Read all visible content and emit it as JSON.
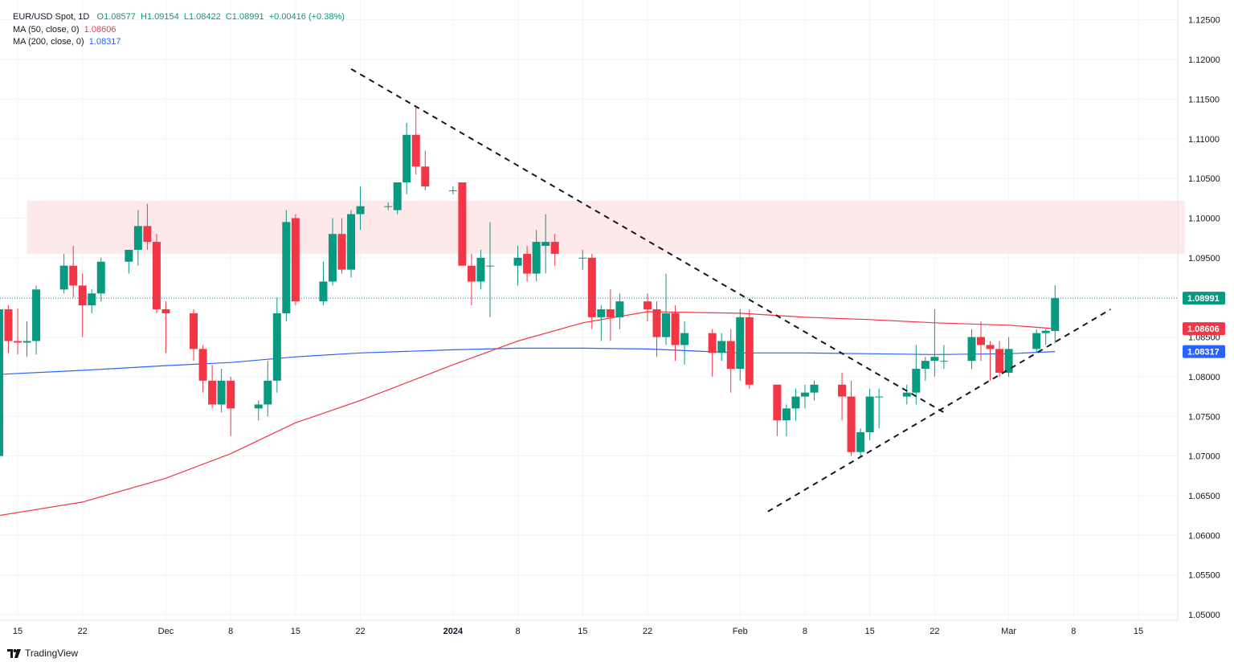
{
  "legend": {
    "symbol": "EUR/USD Spot, 1D",
    "open": "O1.08577",
    "high": "H1.09154",
    "low": "L1.08422",
    "close": "C1.08991",
    "change": "+0.00416 (+0.38%)",
    "ma50_label": "MA (50, close, 0)",
    "ma50_value": "1.08606",
    "ma200_label": "MA (200, close, 0)",
    "ma200_value": "1.08317"
  },
  "brand": {
    "name": "TradingView",
    "icon": "tradingview-logo-icon"
  },
  "colors": {
    "up": "#089981",
    "down": "#f23645",
    "ma50": "#f23645",
    "ma200": "#2962ff",
    "zone": "#fde8ea",
    "grid": "#f0f3fa"
  },
  "chart_data": {
    "type": "candlestick",
    "ylim": [
      1.0493,
      1.1275
    ],
    "y_ticks": [
      "1.05000",
      "1.05500",
      "1.06000",
      "1.06500",
      "1.07000",
      "1.07500",
      "1.08000",
      "1.08500",
      "1.09000",
      "1.09500",
      "1.10000",
      "1.10500",
      "1.11000",
      "1.11500",
      "1.12000",
      "1.12500"
    ],
    "x_ticks": [
      {
        "label": "15",
        "date": "2023-11-15"
      },
      {
        "label": "22",
        "date": "2023-11-22"
      },
      {
        "label": "Dec",
        "date": "2023-12-01"
      },
      {
        "label": "8",
        "date": "2023-12-08"
      },
      {
        "label": "15",
        "date": "2023-12-15"
      },
      {
        "label": "22",
        "date": "2023-12-22"
      },
      {
        "label": "2024",
        "date": "2024-01-01",
        "bold": true
      },
      {
        "label": "8",
        "date": "2024-01-08"
      },
      {
        "label": "15",
        "date": "2024-01-15"
      },
      {
        "label": "22",
        "date": "2024-01-22"
      },
      {
        "label": "Feb",
        "date": "2024-02-01"
      },
      {
        "label": "8",
        "date": "2024-02-08"
      },
      {
        "label": "15",
        "date": "2024-02-15"
      },
      {
        "label": "22",
        "date": "2024-02-22"
      },
      {
        "label": "Mar",
        "date": "2024-03-01"
      },
      {
        "label": "8",
        "date": "2024-03-08"
      },
      {
        "label": "15",
        "date": "2024-03-15"
      }
    ],
    "candles": [
      [
        "2023-11-13",
        1.07,
        1.0886,
        1.068,
        1.0885
      ],
      [
        "2023-11-14",
        1.0885,
        1.089,
        1.083,
        1.0845
      ],
      [
        "2023-11-15",
        1.0845,
        1.0886,
        1.0828,
        1.0843
      ],
      [
        "2023-11-16",
        1.0843,
        1.087,
        1.0825,
        1.0845
      ],
      [
        "2023-11-17",
        1.0845,
        1.0915,
        1.0828,
        1.091
      ],
      [
        "2023-11-20",
        1.091,
        1.0955,
        1.0905,
        1.094
      ],
      [
        "2023-11-21",
        1.094,
        1.0965,
        1.09,
        1.0915
      ],
      [
        "2023-11-22",
        1.0915,
        1.093,
        1.085,
        1.089
      ],
      [
        "2023-11-23",
        1.089,
        1.091,
        1.088,
        1.0905
      ],
      [
        "2023-11-24",
        1.0905,
        1.095,
        1.0895,
        1.0945
      ],
      [
        "2023-11-27",
        1.0945,
        1.096,
        1.093,
        1.096
      ],
      [
        "2023-11-28",
        1.096,
        1.101,
        1.094,
        1.099
      ],
      [
        "2023-11-29",
        1.099,
        1.1018,
        1.096,
        1.097
      ],
      [
        "2023-11-30",
        1.097,
        1.098,
        1.088,
        1.0885
      ],
      [
        "2023-12-01",
        1.0885,
        1.0895,
        1.083,
        1.088
      ],
      [
        "2023-12-04",
        1.088,
        1.0885,
        1.082,
        1.0835
      ],
      [
        "2023-12-05",
        1.0835,
        1.084,
        1.078,
        1.0795
      ],
      [
        "2023-12-06",
        1.0795,
        1.0815,
        1.076,
        1.0765
      ],
      [
        "2023-12-07",
        1.0765,
        1.081,
        1.0755,
        1.0795
      ],
      [
        "2023-12-08",
        1.0795,
        1.08,
        1.0725,
        1.076
      ],
      [
        "2023-12-11",
        1.076,
        1.077,
        1.0745,
        1.0765
      ],
      [
        "2023-12-12",
        1.0765,
        1.082,
        1.075,
        1.0795
      ],
      [
        "2023-12-13",
        1.0795,
        1.09,
        1.078,
        1.088
      ],
      [
        "2023-12-14",
        1.088,
        1.101,
        1.087,
        1.0995
      ],
      [
        "2023-12-15",
        1.1,
        1.1005,
        1.089,
        1.0895
      ],
      [
        "2023-12-18",
        1.0895,
        1.0945,
        1.089,
        1.092
      ],
      [
        "2023-12-19",
        1.092,
        1.1,
        1.0915,
        1.098
      ],
      [
        "2023-12-20",
        1.098,
        1.1,
        1.093,
        1.0935
      ],
      [
        "2023-12-21",
        1.0935,
        1.101,
        1.0925,
        1.1005
      ],
      [
        "2023-12-22",
        1.1005,
        1.104,
        1.0985,
        1.1015
      ],
      [
        "2023-12-25",
        1.1015,
        1.102,
        1.101,
        1.1015
      ],
      [
        "2023-12-26",
        1.101,
        1.1045,
        1.1005,
        1.1045
      ],
      [
        "2023-12-27",
        1.1045,
        1.112,
        1.103,
        1.1105
      ],
      [
        "2023-12-28",
        1.1105,
        1.114,
        1.1055,
        1.1065
      ],
      [
        "2023-12-29",
        1.1065,
        1.1085,
        1.1035,
        1.104
      ],
      [
        "2024-01-01",
        1.1035,
        1.104,
        1.103,
        1.1035
      ],
      [
        "2024-01-02",
        1.1045,
        1.1045,
        1.094,
        1.094
      ],
      [
        "2024-01-03",
        1.094,
        1.0955,
        1.089,
        1.092
      ],
      [
        "2024-01-04",
        1.092,
        1.096,
        1.091,
        1.095
      ],
      [
        "2024-01-05",
        1.094,
        1.0995,
        1.0875,
        1.094
      ],
      [
        "2024-01-08",
        1.094,
        1.0965,
        1.0915,
        1.095
      ],
      [
        "2024-01-09",
        1.0955,
        1.0965,
        1.092,
        1.093
      ],
      [
        "2024-01-10",
        1.093,
        1.0985,
        1.092,
        1.097
      ],
      [
        "2024-01-11",
        1.0965,
        1.1005,
        1.093,
        1.097
      ],
      [
        "2024-01-12",
        1.097,
        1.098,
        1.094,
        1.0955
      ],
      [
        "2024-01-15",
        1.095,
        1.096,
        1.0935,
        1.095
      ],
      [
        "2024-01-16",
        1.095,
        1.0955,
        1.086,
        1.0875
      ],
      [
        "2024-01-17",
        1.0875,
        1.089,
        1.0845,
        1.0885
      ],
      [
        "2024-01-18",
        1.0885,
        1.091,
        1.0845,
        1.0875
      ],
      [
        "2024-01-19",
        1.0875,
        1.0905,
        1.086,
        1.0895
      ],
      [
        "2024-01-22",
        1.0895,
        1.0905,
        1.087,
        1.0885
      ],
      [
        "2024-01-23",
        1.0885,
        1.0895,
        1.0825,
        1.085
      ],
      [
        "2024-01-24",
        1.085,
        1.093,
        1.084,
        1.088
      ],
      [
        "2024-01-25",
        1.088,
        1.089,
        1.082,
        1.084
      ],
      [
        "2024-01-26",
        1.084,
        1.087,
        1.0815,
        1.0855
      ],
      [
        "2024-01-29",
        1.0855,
        1.086,
        1.08,
        1.083
      ],
      [
        "2024-01-30",
        1.083,
        1.0855,
        1.082,
        1.0845
      ],
      [
        "2024-01-31",
        1.0845,
        1.086,
        1.078,
        1.081
      ],
      [
        "2024-02-01",
        1.081,
        1.0885,
        1.0795,
        1.0875
      ],
      [
        "2024-02-02",
        1.0875,
        1.0885,
        1.0785,
        1.079
      ],
      [
        "2024-02-05",
        1.079,
        1.079,
        1.0725,
        1.0745
      ],
      [
        "2024-02-06",
        1.0745,
        1.0765,
        1.0725,
        1.076
      ],
      [
        "2024-02-07",
        1.076,
        1.0785,
        1.0745,
        1.0775
      ],
      [
        "2024-02-08",
        1.0775,
        1.079,
        1.076,
        1.078
      ],
      [
        "2024-02-09",
        1.078,
        1.0795,
        1.077,
        1.079
      ],
      [
        "2024-02-12",
        1.079,
        1.0805,
        1.0745,
        1.0775
      ],
      [
        "2024-02-13",
        1.0775,
        1.0795,
        1.07,
        1.0705
      ],
      [
        "2024-02-14",
        1.0705,
        1.0735,
        1.07,
        1.073
      ],
      [
        "2024-02-15",
        1.073,
        1.0785,
        1.072,
        1.0775
      ],
      [
        "2024-02-16",
        1.0775,
        1.0785,
        1.0735,
        1.0775
      ],
      [
        "2024-02-19",
        1.0775,
        1.079,
        1.0765,
        1.078
      ],
      [
        "2024-02-20",
        1.078,
        1.084,
        1.0765,
        1.081
      ],
      [
        "2024-02-21",
        1.081,
        1.0825,
        1.0795,
        1.082
      ],
      [
        "2024-02-22",
        1.082,
        1.0885,
        1.08,
        1.0825
      ],
      [
        "2024-02-23",
        1.082,
        1.084,
        1.081,
        1.082
      ],
      [
        "2024-02-26",
        1.082,
        1.086,
        1.081,
        1.085
      ],
      [
        "2024-02-27",
        1.085,
        1.087,
        1.082,
        1.084
      ],
      [
        "2024-02-28",
        1.084,
        1.0845,
        1.0795,
        1.0835
      ],
      [
        "2024-02-29",
        1.0835,
        1.0845,
        1.08,
        1.0805
      ],
      [
        "2024-03-01",
        1.0805,
        1.085,
        1.08,
        1.0835
      ],
      [
        "2024-03-04",
        1.0835,
        1.086,
        1.083,
        1.0855
      ],
      [
        "2024-03-05",
        1.0855,
        1.086,
        1.084,
        1.0858
      ],
      [
        "2024-03-06",
        1.08577,
        1.09154,
        1.08422,
        1.08991
      ]
    ],
    "ma50": [
      [
        "2023-11-13",
        1.0625
      ],
      [
        "2023-11-22",
        1.0642
      ],
      [
        "2023-12-01",
        1.0672
      ],
      [
        "2023-12-08",
        1.0703
      ],
      [
        "2023-12-15",
        1.0742
      ],
      [
        "2023-12-22",
        1.077
      ],
      [
        "2024-01-01",
        1.0815
      ],
      [
        "2024-01-08",
        1.0845
      ],
      [
        "2024-01-15",
        1.0868
      ],
      [
        "2024-01-22",
        1.0882
      ],
      [
        "2024-02-01",
        1.088
      ],
      [
        "2024-02-08",
        1.0875
      ],
      [
        "2024-02-15",
        1.0872
      ],
      [
        "2024-02-22",
        1.0868
      ],
      [
        "2024-03-01",
        1.0865
      ],
      [
        "2024-03-06",
        1.08606
      ]
    ],
    "ma200": [
      [
        "2023-11-13",
        1.0803
      ],
      [
        "2023-11-22",
        1.0808
      ],
      [
        "2023-12-01",
        1.0814
      ],
      [
        "2023-12-08",
        1.0818
      ],
      [
        "2023-12-15",
        1.0825
      ],
      [
        "2023-12-22",
        1.083
      ],
      [
        "2024-01-01",
        1.0834
      ],
      [
        "2024-01-08",
        1.0836
      ],
      [
        "2024-01-15",
        1.0836
      ],
      [
        "2024-01-22",
        1.0835
      ],
      [
        "2024-02-01",
        1.083
      ],
      [
        "2024-02-08",
        1.083
      ],
      [
        "2024-02-15",
        1.0829
      ],
      [
        "2024-02-22",
        1.0828
      ],
      [
        "2024-03-01",
        1.0829
      ],
      [
        "2024-03-06",
        1.08317
      ]
    ],
    "zone": {
      "from": "2023-11-16",
      "to": "2024-03-20",
      "low": 1.0955,
      "high": 1.1022
    },
    "trendlines": [
      {
        "name": "downtrend",
        "start": [
          "2023-12-21",
          1.1188
        ],
        "end": [
          "2024-02-23",
          1.0755
        ]
      },
      {
        "name": "uptrend",
        "start": [
          "2024-02-04",
          1.063
        ],
        "end": [
          "2024-03-12",
          1.0885
        ]
      }
    ],
    "last_price": {
      "label": "1.08991",
      "value": 1.08991,
      "color": "#089981"
    },
    "price_tags": [
      {
        "label": "1.08606",
        "value": 1.08606,
        "color": "#f23645"
      },
      {
        "label": "1.08317",
        "value": 1.08317,
        "color": "#2962ff"
      }
    ]
  }
}
